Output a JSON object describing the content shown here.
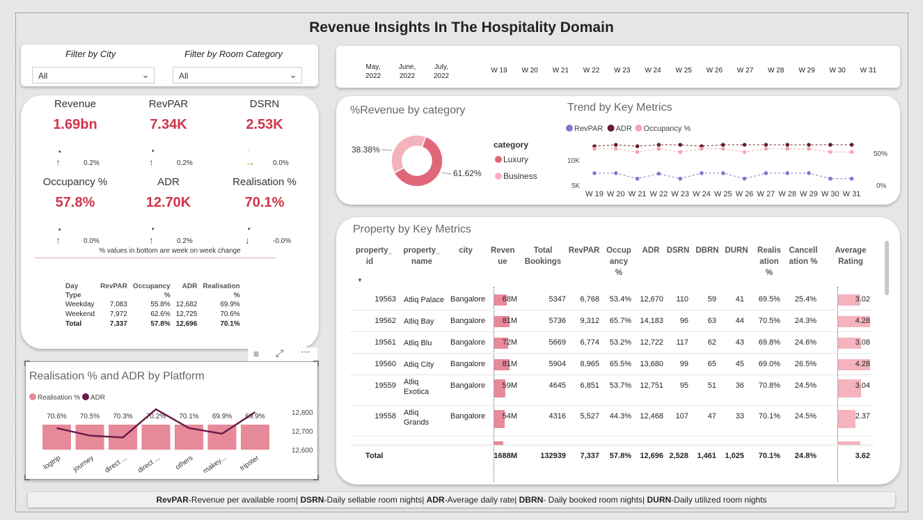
{
  "title": "Revenue Insights In The Hospitality Domain",
  "filters": {
    "city_label": "Filter by City",
    "city_value": "All",
    "room_label": "Filter by Room Category",
    "room_value": "All"
  },
  "dates": {
    "months": [
      [
        "May,",
        "2022"
      ],
      [
        "June,",
        "2022"
      ],
      [
        "July,",
        "2022"
      ]
    ],
    "weeks": [
      "W 19",
      "W 20",
      "W 21",
      "W 22",
      "W 23",
      "W 24",
      "W 25",
      "W 26",
      "W 27",
      "W 28",
      "W 29",
      "W 30",
      "W 31"
    ]
  },
  "kpis": [
    {
      "label": "Revenue",
      "value": "1.69bn",
      "change": "0.2%",
      "dir": "up"
    },
    {
      "label": "RevPAR",
      "value": "7.34K",
      "change": "0.2%",
      "dir": "up"
    },
    {
      "label": "DSRN",
      "value": "2.53K",
      "change": "0.0%",
      "dir": "right"
    },
    {
      "label": "Occupancy %",
      "value": "57.8%",
      "change": "0.0%",
      "dir": "up"
    },
    {
      "label": "ADR",
      "value": "12.70K",
      "change": "0.2%",
      "dir": "up"
    },
    {
      "label": "Realisation %",
      "value": "70.1%",
      "change": "-0.0%",
      "dir": "down"
    }
  ],
  "kpi_note": "% values in bottom are week on week change",
  "day_type": {
    "headers": [
      [
        "Day",
        "Type"
      ],
      [
        "RevPAR",
        ""
      ],
      [
        "Occupancy",
        "%"
      ],
      [
        "ADR",
        ""
      ],
      [
        "Realisation",
        "%"
      ]
    ],
    "rows": [
      [
        "Weekday",
        "7,083",
        "55.8%",
        "12,682",
        "69.9%"
      ],
      [
        "Weekend",
        "7,972",
        "62.6%",
        "12,725",
        "70.6%"
      ],
      [
        "Total",
        "7,337",
        "57.8%",
        "12,696",
        "70.1%"
      ]
    ]
  },
  "donut": {
    "title": "%Revenue by category",
    "legend_title": "category",
    "slices": [
      {
        "name": "Luxury",
        "pct": 61.62,
        "label": "61.62%",
        "color": "#e06679"
      },
      {
        "name": "Business",
        "pct": 38.38,
        "label": "38.38%",
        "color": "#f3b3bc"
      }
    ]
  },
  "trend": {
    "title": "Trend by Key Metrics",
    "legend": [
      {
        "name": "RevPAR",
        "color": "#8f6fd1"
      },
      {
        "name": "ADR",
        "color": "#6b1a2b"
      },
      {
        "name": "Occupancy %",
        "color": "#f1a7b1"
      }
    ],
    "left_ticks": [
      "10K",
      "5K"
    ],
    "right_ticks": [
      "50%",
      "0%"
    ],
    "weeks": [
      "W 19",
      "W 20",
      "W 21",
      "W 22",
      "W 23",
      "W 24",
      "W 25",
      "W 26",
      "W 27",
      "W 28",
      "W 29",
      "W 30",
      "W 31"
    ]
  },
  "chart_data": [
    {
      "type": "pie",
      "title": "%Revenue by category",
      "categories": [
        "Luxury",
        "Business"
      ],
      "values": [
        61.62,
        38.38
      ]
    },
    {
      "type": "line",
      "title": "Trend by Key Metrics",
      "x": [
        "W 19",
        "W 20",
        "W 21",
        "W 22",
        "W 23",
        "W 24",
        "W 25",
        "W 26",
        "W 27",
        "W 28",
        "W 29",
        "W 30",
        "W 31"
      ],
      "series": [
        {
          "name": "RevPAR",
          "values": [
            7400,
            7400,
            6300,
            7300,
            6300,
            7400,
            7400,
            6300,
            7400,
            7400,
            7400,
            6300,
            6300
          ]
        },
        {
          "name": "ADR",
          "values": [
            12600,
            12700,
            12600,
            12700,
            12700,
            12600,
            12700,
            12700,
            12700,
            12700,
            12700,
            12700,
            12700
          ]
        },
        {
          "name": "Occupancy %",
          "values": [
            58,
            58,
            53,
            58,
            53,
            58,
            58,
            53,
            58,
            58,
            58,
            53,
            53
          ]
        }
      ]
    },
    {
      "type": "bar",
      "title": "Realisation % and ADR by Platform",
      "categories": [
        "logtrip",
        "journey",
        "direct ...",
        "direct ...",
        "others",
        "makey...",
        "tripster"
      ],
      "series": [
        {
          "name": "Realisation %",
          "values": [
            70.6,
            70.5,
            70.3,
            70.2,
            70.1,
            69.9,
            69.9
          ],
          "labels": [
            "70.6%",
            "70.5%",
            "70.3%",
            "70.2%",
            "70.1%",
            "69.9%",
            "69.9%"
          ]
        },
        {
          "name": "ADR",
          "values": [
            12715,
            12675,
            12665,
            12815,
            12715,
            12685,
            12800
          ]
        }
      ],
      "y2_ticks": [
        "12,800",
        "12,700",
        "12,600"
      ]
    }
  ],
  "platform": {
    "title": "Realisation % and ADR by Platform",
    "legend": [
      {
        "name": "Realisation %",
        "color": "#e68a99"
      },
      {
        "name": "ADR",
        "color": "#6b1a4b"
      }
    ]
  },
  "property": {
    "title": "Property by Key Metrics",
    "headers": [
      [
        "property_",
        "id"
      ],
      [
        "property_",
        "name"
      ],
      [
        "city",
        ""
      ],
      [
        "Reven",
        "ue"
      ],
      [
        "Total",
        "Bookings"
      ],
      [
        "RevPAR",
        ""
      ],
      [
        "Occup",
        "ancy",
        "%"
      ],
      [
        "ADR",
        ""
      ],
      [
        "DSRN",
        ""
      ],
      [
        "DBRN",
        ""
      ],
      [
        "DURN",
        ""
      ],
      [
        "Realis",
        "ation",
        "%"
      ],
      [
        "Cancell",
        "ation %"
      ],
      [
        "Average",
        "Rating"
      ]
    ],
    "rows": [
      {
        "id": "19563",
        "name": [
          "Atliq Palace"
        ],
        "city": "Bangalore",
        "rev": "68M",
        "revn": 68,
        "book": "5347",
        "revpar": "6,768",
        "occ": "53.4%",
        "adr": "12,670",
        "dsrn": "110",
        "dbrn": "59",
        "durn": "41",
        "real": "69.5%",
        "canc": "25.4%",
        "rating": "3.02",
        "ratingn": 3.02
      },
      {
        "id": "19562",
        "name": [
          "Atliq Bay"
        ],
        "city": "Bangalore",
        "rev": "81M",
        "revn": 81,
        "book": "5736",
        "revpar": "9,312",
        "occ": "65.7%",
        "adr": "14,183",
        "dsrn": "96",
        "dbrn": "63",
        "durn": "44",
        "real": "70.5%",
        "canc": "24.3%",
        "rating": "4.28",
        "ratingn": 4.28
      },
      {
        "id": "19561",
        "name": [
          "Atliq Blu"
        ],
        "city": "Bangalore",
        "rev": "72M",
        "revn": 72,
        "book": "5669",
        "revpar": "6,774",
        "occ": "53.2%",
        "adr": "12,722",
        "dsrn": "117",
        "dbrn": "62",
        "durn": "43",
        "real": "69.8%",
        "canc": "24.6%",
        "rating": "3.08",
        "ratingn": 3.08
      },
      {
        "id": "19560",
        "name": [
          "Atliq City"
        ],
        "city": "Bangalore",
        "rev": "81M",
        "revn": 81,
        "book": "5904",
        "revpar": "8,965",
        "occ": "65.5%",
        "adr": "13,680",
        "dsrn": "99",
        "dbrn": "65",
        "durn": "45",
        "real": "69.0%",
        "canc": "26.5%",
        "rating": "4.28",
        "ratingn": 4.28
      },
      {
        "id": "19559",
        "name": [
          "Atliq",
          "Exotica"
        ],
        "city": "Bangalore",
        "rev": "59M",
        "revn": 59,
        "book": "4645",
        "revpar": "6,851",
        "occ": "53.7%",
        "adr": "12,751",
        "dsrn": "95",
        "dbrn": "51",
        "durn": "36",
        "real": "70.8%",
        "canc": "24.5%",
        "rating": "3.04",
        "ratingn": 3.04
      },
      {
        "id": "19558",
        "name": [
          "Atliq",
          "Grands"
        ],
        "city": "Bangalore",
        "rev": "54M",
        "revn": 54,
        "book": "4316",
        "revpar": "5,527",
        "occ": "44.3%",
        "adr": "12,468",
        "dsrn": "107",
        "dbrn": "47",
        "durn": "33",
        "real": "70.1%",
        "canc": "24.5%",
        "rating": "2.37",
        "ratingn": 2.37
      }
    ],
    "total": {
      "label": "Total",
      "rev": "1688M",
      "book": "132939",
      "revpar": "7,337",
      "occ": "57.8%",
      "adr": "12,696",
      "dsrn": "2,528",
      "dbrn": "1,461",
      "durn": "1,025",
      "real": "70.1%",
      "canc": "24.8%",
      "rating": "3.62"
    }
  },
  "footer": [
    {
      "b": "RevPAR",
      "t": "-Revenue per available room| "
    },
    {
      "b": "DSRN",
      "t": "-Daily sellable room nights| "
    },
    {
      "b": "ADR",
      "t": "-Average daily rate| "
    },
    {
      "b": "DBRN",
      "t": "- Daily booked room nights| "
    },
    {
      "b": "DURN",
      "t": "-Daily utilized room nights"
    }
  ]
}
